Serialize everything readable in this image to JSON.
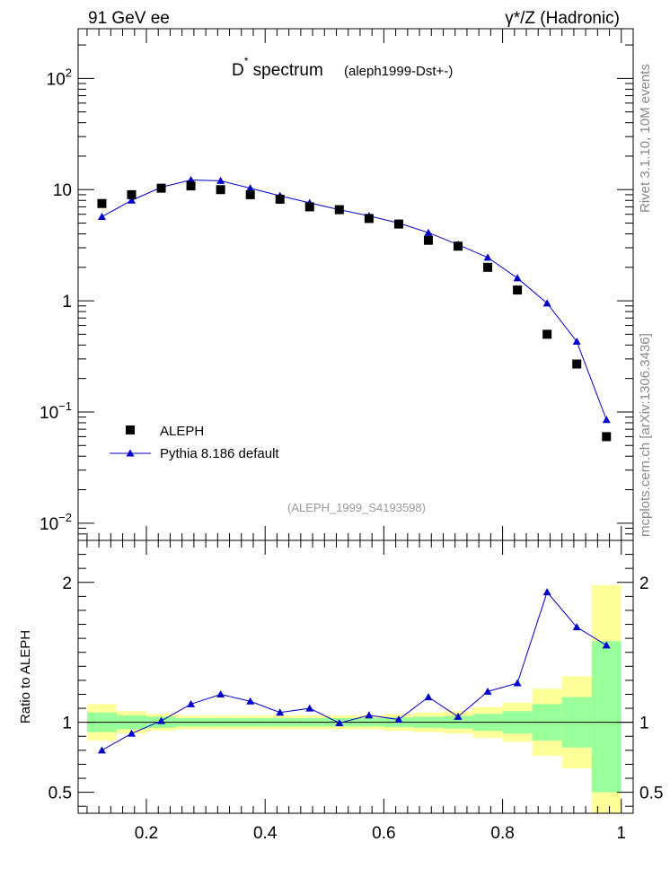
{
  "header": {
    "left": "91 GeV ee",
    "right": "γ*/Z (Hadronic)"
  },
  "side_labels": {
    "rivet": "Rivet 3.1.10, 10M events",
    "mcplots": "mcplots.cern.ch [arXiv:1306.3436]"
  },
  "chart_data": [
    {
      "type": "scatter",
      "title_main": "D",
      "title_sup": "*",
      "title_rest": " spectrum",
      "title_small": "(aleph1999-Dst+-)",
      "watermark": "(ALEPH_1999_S4193598)",
      "yscale": "log",
      "ylim": [
        0.007,
        280
      ],
      "xlim": [
        0.085,
        1.02
      ],
      "y_ticks": [
        {
          "value": 0.01,
          "base": "10",
          "exp": "−2"
        },
        {
          "value": 0.1,
          "base": "10",
          "exp": "−1"
        },
        {
          "value": 1,
          "base": "1",
          "exp": ""
        },
        {
          "value": 10,
          "base": "10",
          "exp": ""
        },
        {
          "value": 100,
          "base": "10",
          "exp": "2"
        }
      ],
      "legend_position": "bottom-left",
      "x": [
        0.125,
        0.175,
        0.225,
        0.275,
        0.325,
        0.375,
        0.425,
        0.475,
        0.525,
        0.575,
        0.625,
        0.675,
        0.725,
        0.775,
        0.825,
        0.875,
        0.925,
        0.975
      ],
      "series": [
        {
          "name": "ALEPH",
          "marker": "square",
          "color": "#000000",
          "values": [
            7.5,
            9.0,
            10.3,
            10.8,
            10.0,
            9.0,
            8.2,
            7.0,
            6.6,
            5.5,
            4.9,
            3.5,
            3.1,
            2.0,
            1.25,
            0.5,
            0.27,
            0.06
          ]
        },
        {
          "name": "Pythia 8.186 default",
          "marker": "triangle",
          "color": "#0000cc",
          "values": [
            5.7,
            8.0,
            10.5,
            12.2,
            12.0,
            10.3,
            8.8,
            7.6,
            6.6,
            5.8,
            5.0,
            4.1,
            3.2,
            2.45,
            1.6,
            0.95,
            0.43,
            0.085
          ]
        }
      ]
    },
    {
      "type": "scatter",
      "ylabel": "Ratio to ALEPH",
      "ylim": [
        0.35,
        2.3
      ],
      "xlim": [
        0.085,
        1.02
      ],
      "y_ticks": [
        0.5,
        1,
        2
      ],
      "x_ticks": [
        0.2,
        0.4,
        0.6,
        0.8,
        1
      ],
      "x_tick_labels": [
        "0.2",
        "0.4",
        "0.6",
        "0.8",
        "1"
      ],
      "band_colors": {
        "inner": "#99ff99",
        "outer": "#ffff99"
      },
      "bands": [
        {
          "x0": 0.1,
          "x1": 0.15,
          "in_lo": 0.93,
          "in_hi": 1.07,
          "out_lo": 0.87,
          "out_hi": 1.13
        },
        {
          "x0": 0.15,
          "x1": 0.2,
          "in_lo": 0.95,
          "in_hi": 1.05,
          "out_lo": 0.92,
          "out_hi": 1.08
        },
        {
          "x0": 0.2,
          "x1": 0.25,
          "in_lo": 0.96,
          "in_hi": 1.04,
          "out_lo": 0.94,
          "out_hi": 1.06
        },
        {
          "x0": 0.25,
          "x1": 0.3,
          "in_lo": 0.97,
          "in_hi": 1.03,
          "out_lo": 0.95,
          "out_hi": 1.05
        },
        {
          "x0": 0.3,
          "x1": 0.35,
          "in_lo": 0.97,
          "in_hi": 1.03,
          "out_lo": 0.95,
          "out_hi": 1.05
        },
        {
          "x0": 0.35,
          "x1": 0.4,
          "in_lo": 0.97,
          "in_hi": 1.03,
          "out_lo": 0.95,
          "out_hi": 1.05
        },
        {
          "x0": 0.4,
          "x1": 0.45,
          "in_lo": 0.97,
          "in_hi": 1.03,
          "out_lo": 0.95,
          "out_hi": 1.05
        },
        {
          "x0": 0.45,
          "x1": 0.5,
          "in_lo": 0.97,
          "in_hi": 1.03,
          "out_lo": 0.95,
          "out_hi": 1.05
        },
        {
          "x0": 0.5,
          "x1": 0.55,
          "in_lo": 0.97,
          "in_hi": 1.03,
          "out_lo": 0.95,
          "out_hi": 1.05
        },
        {
          "x0": 0.55,
          "x1": 0.6,
          "in_lo": 0.97,
          "in_hi": 1.03,
          "out_lo": 0.95,
          "out_hi": 1.05
        },
        {
          "x0": 0.6,
          "x1": 0.65,
          "in_lo": 0.965,
          "in_hi": 1.035,
          "out_lo": 0.94,
          "out_hi": 1.06
        },
        {
          "x0": 0.65,
          "x1": 0.7,
          "in_lo": 0.96,
          "in_hi": 1.04,
          "out_lo": 0.93,
          "out_hi": 1.07
        },
        {
          "x0": 0.7,
          "x1": 0.75,
          "in_lo": 0.955,
          "in_hi": 1.045,
          "out_lo": 0.92,
          "out_hi": 1.08
        },
        {
          "x0": 0.75,
          "x1": 0.8,
          "in_lo": 0.94,
          "in_hi": 1.06,
          "out_lo": 0.89,
          "out_hi": 1.11
        },
        {
          "x0": 0.8,
          "x1": 0.85,
          "in_lo": 0.92,
          "in_hi": 1.08,
          "out_lo": 0.86,
          "out_hi": 1.14
        },
        {
          "x0": 0.85,
          "x1": 0.9,
          "in_lo": 0.87,
          "in_hi": 1.13,
          "out_lo": 0.76,
          "out_hi": 1.24
        },
        {
          "x0": 0.9,
          "x1": 0.95,
          "in_lo": 0.82,
          "in_hi": 1.18,
          "out_lo": 0.67,
          "out_hi": 1.33
        },
        {
          "x0": 0.95,
          "x1": 1.0,
          "in_lo": 0.5,
          "in_hi": 1.58,
          "out_lo": 0.35,
          "out_hi": 1.98
        }
      ],
      "ratio": [
        0.8,
        0.92,
        1.01,
        1.13,
        1.2,
        1.15,
        1.07,
        1.1,
        0.995,
        1.05,
        1.02,
        1.18,
        1.04,
        1.22,
        1.28,
        1.93,
        1.68,
        1.55
      ]
    }
  ]
}
